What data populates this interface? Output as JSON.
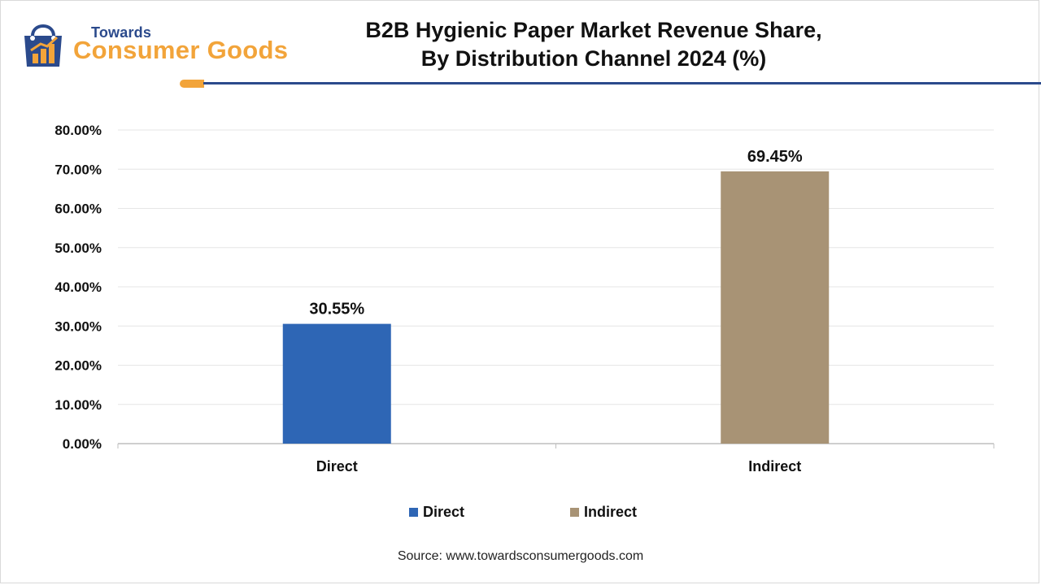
{
  "logo": {
    "top_text": "Towards",
    "main_text": "Consumer Goods",
    "icon": "shopping-bag-chart-icon",
    "colors": {
      "navy": "#2b4a8c",
      "orange": "#f2a43a"
    }
  },
  "header": {
    "title_line1": "B2B Hygienic Paper Market Revenue Share,",
    "title_line2": "By Distribution Channel 2024 (%)"
  },
  "chart_data": {
    "type": "bar",
    "title": "B2B Hygienic Paper Market Revenue Share, By Distribution Channel 2024 (%)",
    "categories": [
      "Direct",
      "Indirect"
    ],
    "values": [
      30.55,
      69.45
    ],
    "data_labels": [
      "30.55%",
      "69.45%"
    ],
    "colors": [
      "#2e66b5",
      "#a89375"
    ],
    "xlabel": "",
    "ylabel": "",
    "ylim": [
      0,
      80
    ],
    "yticks": [
      0,
      10,
      20,
      30,
      40,
      50,
      60,
      70,
      80
    ],
    "ytick_labels": [
      "0.00%",
      "10.00%",
      "20.00%",
      "30.00%",
      "40.00%",
      "50.00%",
      "60.00%",
      "70.00%",
      "80.00%"
    ],
    "grid": true,
    "legend_position": "bottom"
  },
  "legend": [
    {
      "label": "Direct",
      "color": "#2e66b5"
    },
    {
      "label": "Indirect",
      "color": "#a89375"
    }
  ],
  "source": "Source: www.towardsconsumergoods.com"
}
